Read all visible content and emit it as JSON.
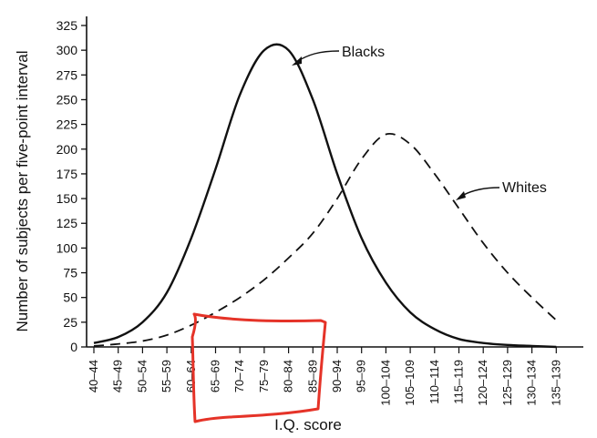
{
  "chart_data": {
    "type": "line",
    "title": "",
    "xlabel": "I.Q. score",
    "ylabel": "Number of subjects per five-point interval",
    "ylim": [
      0,
      325
    ],
    "yticks": [
      0,
      25,
      50,
      75,
      100,
      125,
      150,
      175,
      200,
      225,
      250,
      275,
      300,
      325
    ],
    "categories": [
      "40–44",
      "45–49",
      "50–54",
      "55–59",
      "60–64",
      "65–69",
      "70–74",
      "75–79",
      "80–84",
      "85–89",
      "90–94",
      "95–99",
      "100–104",
      "105–109",
      "110–114",
      "115–119",
      "120–124",
      "125–129",
      "130–134",
      "135–139"
    ],
    "series": [
      {
        "name": "Blacks",
        "style": "solid",
        "color": "#111111",
        "values": [
          4,
          10,
          25,
          55,
          110,
          180,
          255,
          300,
          300,
          250,
          175,
          110,
          65,
          35,
          18,
          8,
          4,
          2,
          1,
          0
        ]
      },
      {
        "name": "Whites",
        "style": "dashed",
        "color": "#111111",
        "values": [
          1,
          3,
          6,
          12,
          22,
          35,
          50,
          68,
          90,
          115,
          150,
          190,
          215,
          205,
          175,
          140,
          105,
          75,
          50,
          27
        ]
      }
    ],
    "annotations": [
      {
        "label": "Blacks"
      },
      {
        "label": "Whites"
      }
    ],
    "grid": false,
    "legend": "inline"
  },
  "overlay": {
    "highlight_color": "#e53328",
    "description_visible": false
  }
}
